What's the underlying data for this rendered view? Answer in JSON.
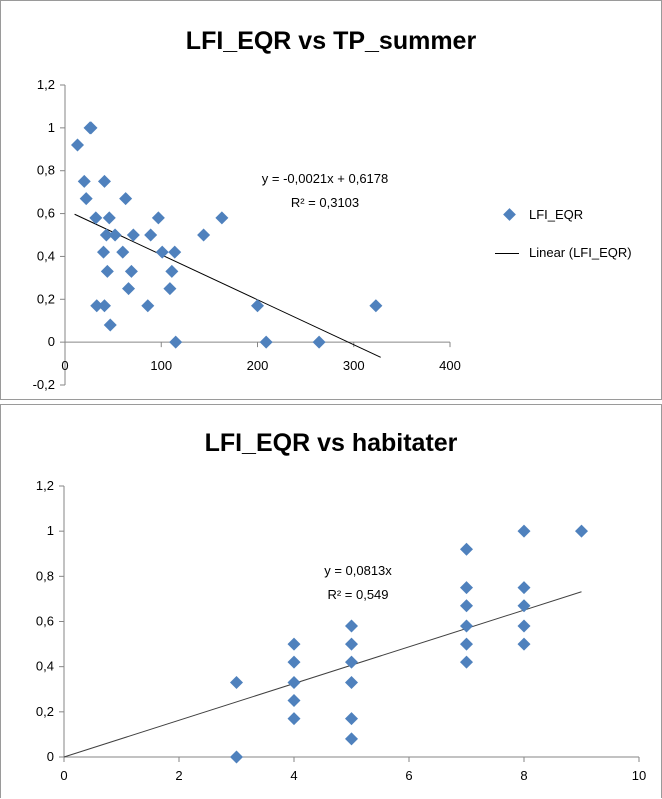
{
  "chart_data": [
    {
      "type": "scatter",
      "title": "LFI_EQR vs TP_summer",
      "xlim": [
        0,
        400
      ],
      "ylim": [
        -0.2,
        1.2
      ],
      "x_ticks": [
        "0",
        "100",
        "200",
        "300",
        "400"
      ],
      "y_ticks": [
        "-0,2",
        "0",
        "0,2",
        "0,4",
        "0,6",
        "0,8",
        "1",
        "1,2"
      ],
      "grid": false,
      "legend_position": "right",
      "series": [
        {
          "name": "LFI_EQR",
          "color": "#4f81bd",
          "marker": "diamond",
          "points": [
            [
              13,
              0.92
            ],
            [
              20,
              0.75
            ],
            [
              22,
              0.67
            ],
            [
              27,
              1.0
            ],
            [
              26,
              1.0
            ],
            [
              32,
              0.58
            ],
            [
              33,
              0.17
            ],
            [
              40,
              0.42
            ],
            [
              41,
              0.17
            ],
            [
              41,
              0.75
            ],
            [
              43,
              0.5
            ],
            [
              44,
              0.33
            ],
            [
              46,
              0.58
            ],
            [
              47,
              0.08
            ],
            [
              52,
              0.5
            ],
            [
              60,
              0.42
            ],
            [
              63,
              0.67
            ],
            [
              66,
              0.25
            ],
            [
              69,
              0.33
            ],
            [
              71,
              0.5
            ],
            [
              86,
              0.17
            ],
            [
              89,
              0.5
            ],
            [
              97,
              0.58
            ],
            [
              101,
              0.42
            ],
            [
              109,
              0.25
            ],
            [
              111,
              0.33
            ],
            [
              114,
              0.42
            ],
            [
              115,
              0.0
            ],
            [
              144,
              0.5
            ],
            [
              163,
              0.58
            ],
            [
              200,
              0.17
            ],
            [
              209,
              0.0
            ],
            [
              264,
              0.0
            ],
            [
              323,
              0.17
            ]
          ]
        }
      ],
      "trendline": {
        "name": "Linear (LFI_EQR)",
        "slope": -0.0021,
        "intercept": 0.6178,
        "x_range": [
          10,
          328
        ],
        "color": "#000000",
        "equation": "y = -0,0021x + 0,6178",
        "r_squared": "R² = 0,3103"
      }
    },
    {
      "type": "scatter",
      "title": "LFI_EQR vs habitater",
      "xlim": [
        0,
        10
      ],
      "ylim": [
        0,
        1.2
      ],
      "x_ticks": [
        "0",
        "2",
        "4",
        "6",
        "8",
        "10"
      ],
      "y_ticks": [
        "0",
        "0,2",
        "0,4",
        "0,6",
        "0,8",
        "1",
        "1,2"
      ],
      "grid": false,
      "series": [
        {
          "name": "",
          "color": "#4f81bd",
          "marker": "diamond",
          "points": [
            [
              3,
              0.33
            ],
            [
              3,
              0.0
            ],
            [
              4,
              0.5
            ],
            [
              4,
              0.42
            ],
            [
              4,
              0.33
            ],
            [
              4,
              0.25
            ],
            [
              4,
              0.17
            ],
            [
              5,
              0.58
            ],
            [
              5,
              0.5
            ],
            [
              5,
              0.42
            ],
            [
              5,
              0.33
            ],
            [
              5,
              0.17
            ],
            [
              5,
              0.08
            ],
            [
              7,
              0.92
            ],
            [
              7,
              0.75
            ],
            [
              7,
              0.67
            ],
            [
              7,
              0.58
            ],
            [
              7,
              0.5
            ],
            [
              7,
              0.42
            ],
            [
              8,
              1.0
            ],
            [
              8,
              0.75
            ],
            [
              8,
              0.67
            ],
            [
              8,
              0.58
            ],
            [
              8,
              0.5
            ],
            [
              9,
              1.0
            ]
          ]
        }
      ],
      "trendline": {
        "slope": 0.0813,
        "intercept": 0,
        "x_range": [
          0,
          9
        ],
        "color": "#404040",
        "equation": "y = 0,0813x",
        "r_squared": "R² = 0,549"
      }
    }
  ]
}
